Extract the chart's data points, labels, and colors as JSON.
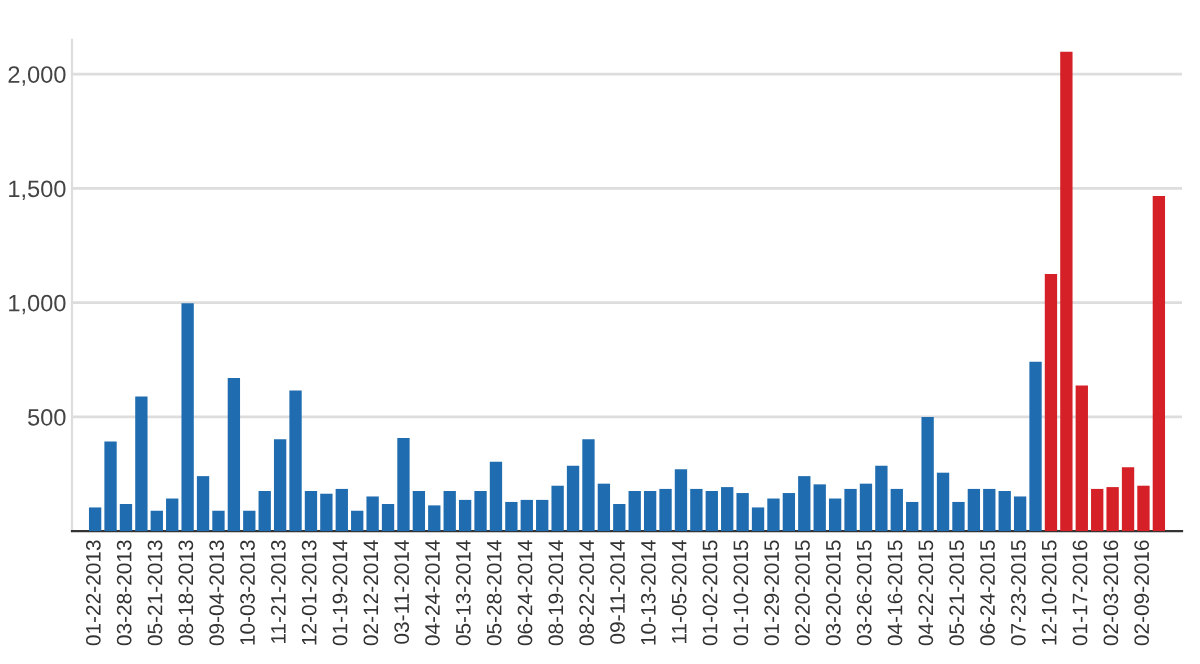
{
  "chart_data": {
    "type": "bar",
    "categories": [
      "01-22-2013",
      null,
      "03-28-2013",
      null,
      "05-21-2013",
      null,
      "08-18-2013",
      null,
      "09-04-2013",
      null,
      "10-03-2013",
      null,
      "11-21-2013",
      null,
      "12-01-2013",
      null,
      "01-19-2014",
      null,
      "02-12-2014",
      null,
      "03-11-2014",
      null,
      "04-24-2014",
      null,
      "05-13-2014",
      null,
      "05-28-2014",
      null,
      "06-24-2014",
      null,
      "08-19-2014",
      null,
      "08-22-2014",
      null,
      "09-11-2014",
      null,
      "10-13-2014",
      null,
      "11-05-2014",
      null,
      "01-02-2015",
      null,
      "01-10-2015",
      null,
      "01-29-2015",
      null,
      "02-20-2015",
      null,
      "03-20-2015",
      null,
      "03-26-2015",
      null,
      "04-16-2015",
      null,
      "04-22-2015",
      null,
      "05-21-2015",
      null,
      "06-24-2015",
      null,
      "07-23-2015",
      null,
      "12-10-2015",
      null,
      "01-17-2016",
      null,
      "02-03-2016",
      null,
      "02-09-2016",
      null
    ],
    "values": [
      104,
      393,
      119,
      589,
      89,
      143,
      997,
      241,
      89,
      670,
      89,
      176,
      402,
      616,
      176,
      164,
      185,
      89,
      152,
      119,
      408,
      176,
      113,
      176,
      137,
      176,
      304,
      128,
      137,
      137,
      199,
      286,
      402,
      208,
      119,
      176,
      176,
      185,
      271,
      185,
      176,
      193,
      167,
      104,
      143,
      167,
      241,
      205,
      143,
      185,
      208,
      286,
      185,
      128,
      500,
      256,
      128,
      185,
      185,
      176,
      152,
      741,
      1125,
      2098,
      637,
      185,
      193,
      280,
      199,
      1467
    ],
    "colors": [
      "#1f6db0",
      "#1f6db0",
      "#1f6db0",
      "#1f6db0",
      "#1f6db0",
      "#1f6db0",
      "#1f6db0",
      "#1f6db0",
      "#1f6db0",
      "#1f6db0",
      "#1f6db0",
      "#1f6db0",
      "#1f6db0",
      "#1f6db0",
      "#1f6db0",
      "#1f6db0",
      "#1f6db0",
      "#1f6db0",
      "#1f6db0",
      "#1f6db0",
      "#1f6db0",
      "#1f6db0",
      "#1f6db0",
      "#1f6db0",
      "#1f6db0",
      "#1f6db0",
      "#1f6db0",
      "#1f6db0",
      "#1f6db0",
      "#1f6db0",
      "#1f6db0",
      "#1f6db0",
      "#1f6db0",
      "#1f6db0",
      "#1f6db0",
      "#1f6db0",
      "#1f6db0",
      "#1f6db0",
      "#1f6db0",
      "#1f6db0",
      "#1f6db0",
      "#1f6db0",
      "#1f6db0",
      "#1f6db0",
      "#1f6db0",
      "#1f6db0",
      "#1f6db0",
      "#1f6db0",
      "#1f6db0",
      "#1f6db0",
      "#1f6db0",
      "#1f6db0",
      "#1f6db0",
      "#1f6db0",
      "#1f6db0",
      "#1f6db0",
      "#1f6db0",
      "#1f6db0",
      "#1f6db0",
      "#1f6db0",
      "#1f6db0",
      "#1f6db0",
      "#d42026",
      "#d42026",
      "#d42026",
      "#d42026",
      "#d42026",
      "#d42026",
      "#d42026",
      "#d42026"
    ],
    "ylim": [
      0,
      2150
    ],
    "yticks": [
      {
        "value": 500,
        "label": "500"
      },
      {
        "value": 1000,
        "label": "1,000"
      },
      {
        "value": 1500,
        "label": "1,500"
      },
      {
        "value": 2000,
        "label": "2,000"
      }
    ],
    "grid": "y"
  }
}
